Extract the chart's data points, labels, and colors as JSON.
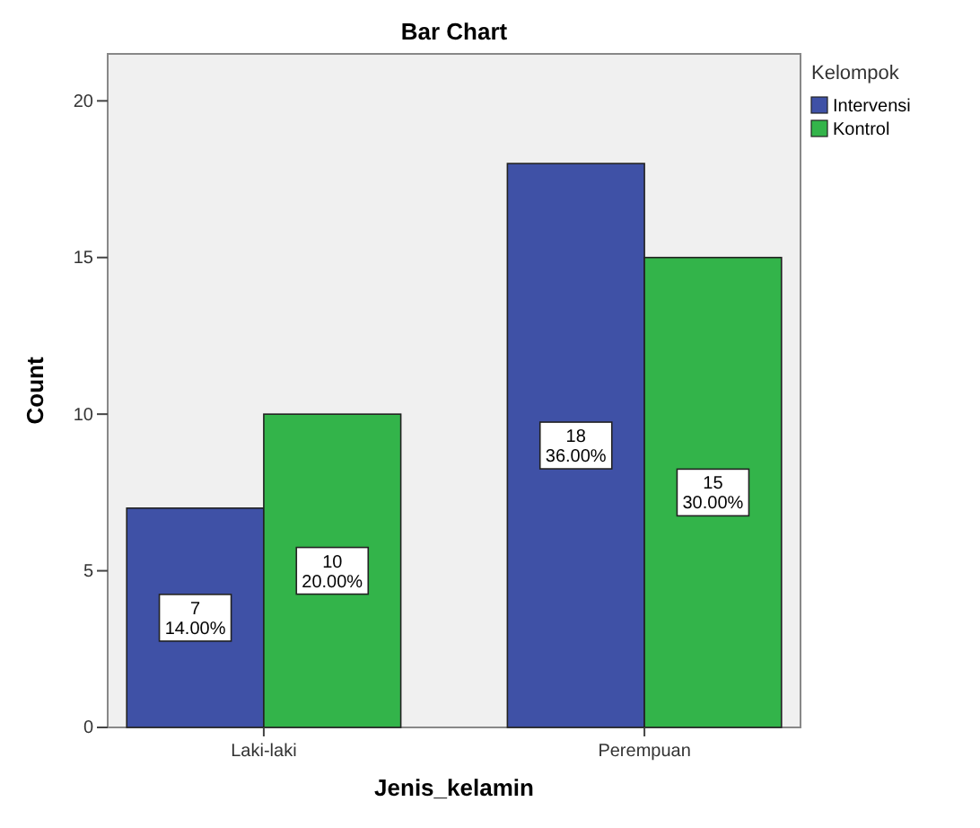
{
  "chart_data": {
    "type": "bar",
    "title": "Bar Chart",
    "xlabel": "Jenis_kelamin",
    "ylabel": "Count",
    "legend_title": "Kelompok",
    "categories": [
      "Laki-laki",
      "Perempuan"
    ],
    "series": [
      {
        "name": "Intervensi",
        "color": "#3f51a6",
        "values": [
          7,
          18
        ],
        "value_labels": [
          "7\n14.00%",
          "18\n36.00%"
        ]
      },
      {
        "name": "Kontrol",
        "color": "#33b44a",
        "values": [
          10,
          15
        ],
        "value_labels": [
          "10\n20.00%",
          "15\n30.00%"
        ]
      }
    ],
    "ylim": [
      0,
      21.5
    ],
    "yticks": [
      0,
      5,
      10,
      15,
      20
    ],
    "grid": false,
    "legend": "right"
  }
}
